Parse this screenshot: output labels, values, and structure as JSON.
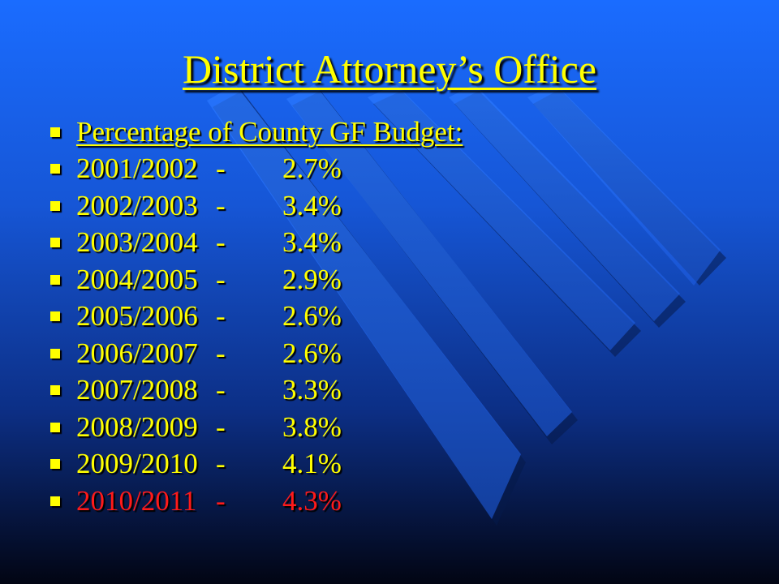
{
  "slide": {
    "title": "District Attorney’s Office",
    "heading": "Percentage of County GF Budget:",
    "rows": [
      {
        "year": "2001/2002",
        "sep": "-",
        "pct": "2.7%"
      },
      {
        "year": "2002/2003",
        "sep": "-",
        "pct": "3.4%"
      },
      {
        "year": "2003/2004",
        "sep": "-",
        "pct": "3.4%"
      },
      {
        "year": "2004/2005",
        "sep": "-",
        "pct": "2.9%"
      },
      {
        "year": "2005/2006",
        "sep": "-",
        "pct": "2.6%"
      },
      {
        "year": "2006/2007",
        "sep": "-",
        "pct": "2.6%"
      },
      {
        "year": "2007/2008",
        "sep": "-",
        "pct": "3.3%"
      },
      {
        "year": "2008/2009",
        "sep": "-",
        "pct": "3.8%"
      },
      {
        "year": "2009/2010",
        "sep": "-",
        "pct": "4.1%"
      },
      {
        "year": "2010/2011",
        "sep": "-",
        "pct": "4.3%"
      }
    ]
  },
  "colors": {
    "text": "#ffff00",
    "highlight": "#ff1a1a",
    "background_top": "#1a6cff",
    "background_bottom": "#020513"
  }
}
